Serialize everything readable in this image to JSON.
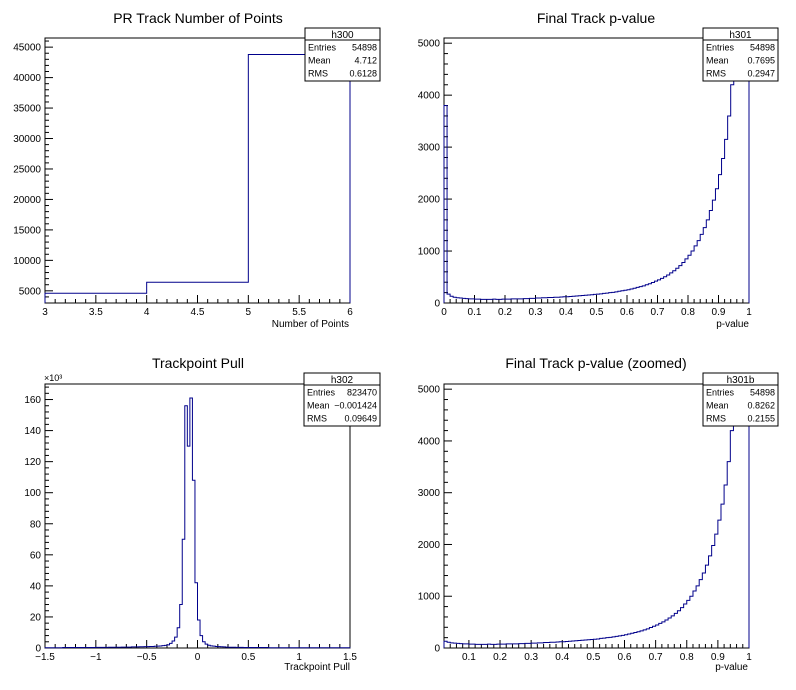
{
  "chart_data": [
    {
      "id": "h300",
      "type": "histogram",
      "title": "PR Track Number of Points",
      "xlabel": "Number of Points",
      "ylabel": "",
      "xlim": [
        3,
        6
      ],
      "ylim": [
        3000,
        46500
      ],
      "xticks": [
        3,
        3.5,
        4,
        4.5,
        5,
        5.5,
        6
      ],
      "xtick_labels": [
        "3",
        "3.5",
        "4",
        "4.5",
        "5",
        "5.5",
        "6"
      ],
      "yticks": [
        5000,
        10000,
        15000,
        20000,
        25000,
        30000,
        35000,
        40000,
        45000
      ],
      "ytick_labels": [
        "5000",
        "10000",
        "15000",
        "20000",
        "25000",
        "30000",
        "35000",
        "40000",
        "45000"
      ],
      "exponent_label": "",
      "bin_edges": [
        3,
        4,
        5,
        6
      ],
      "values": [
        4600,
        6400,
        43800
      ],
      "stats": {
        "name": "h300",
        "rows": [
          [
            "Entries",
            "54898"
          ],
          [
            "Mean",
            "4.712"
          ],
          [
            "RMS",
            "0.6128"
          ]
        ]
      }
    },
    {
      "id": "h301",
      "type": "histogram",
      "title": "Final Track p-value",
      "xlabel": "p-value",
      "ylabel": "",
      "xlim": [
        0,
        1
      ],
      "ylim": [
        0,
        5100
      ],
      "xticks": [
        0,
        0.1,
        0.2,
        0.3,
        0.4,
        0.5,
        0.6,
        0.7,
        0.8,
        0.9,
        1
      ],
      "xtick_labels": [
        "0",
        "0.1",
        "0.2",
        "0.3",
        "0.4",
        "0.5",
        "0.6",
        "0.7",
        "0.8",
        "0.9",
        "1"
      ],
      "yticks": [
        0,
        1000,
        2000,
        3000,
        4000,
        5000
      ],
      "ytick_labels": [
        "0",
        "1000",
        "2000",
        "3000",
        "4000",
        "5000"
      ],
      "exponent_label": "",
      "bin_start": 0,
      "bin_width": 0.01,
      "values": [
        3800,
        170,
        130,
        110,
        100,
        95,
        90,
        85,
        80,
        80,
        75,
        75,
        70,
        70,
        70,
        70,
        75,
        70,
        70,
        75,
        75,
        75,
        80,
        80,
        80,
        80,
        85,
        85,
        90,
        90,
        95,
        95,
        100,
        100,
        105,
        105,
        110,
        110,
        115,
        120,
        120,
        125,
        130,
        135,
        140,
        145,
        150,
        155,
        160,
        165,
        170,
        175,
        185,
        190,
        200,
        205,
        215,
        225,
        235,
        245,
        255,
        270,
        285,
        300,
        315,
        330,
        350,
        370,
        395,
        420,
        445,
        475,
        505,
        540,
        580,
        620,
        670,
        720,
        780,
        850,
        920,
        1000,
        1100,
        1200,
        1320,
        1450,
        1600,
        1780,
        1980,
        2200,
        2470,
        2780,
        3150,
        3600,
        4200,
        4350,
        4600,
        4850,
        4500,
        4300
      ]
    },
    {
      "id": "h302",
      "type": "histogram",
      "title": "Trackpoint Pull",
      "xlabel": "Trackpoint Pull",
      "ylabel": "",
      "xlim": [
        -1.5,
        1.5
      ],
      "ylim": [
        0,
        170
      ],
      "xticks": [
        -1.5,
        -1,
        -0.5,
        0,
        0.5,
        1,
        1.5
      ],
      "xtick_labels": [
        "−1.5",
        "−1",
        "−0.5",
        "0",
        "0.5",
        "1",
        "1.5"
      ],
      "yticks": [
        0,
        20,
        40,
        60,
        80,
        100,
        120,
        140,
        160
      ],
      "ytick_labels": [
        "0",
        "20",
        "40",
        "60",
        "80",
        "100",
        "120",
        "140",
        "160"
      ],
      "exponent_label": "×10³",
      "bin_start": -1.5,
      "bin_width": 0.025,
      "values": [
        0.2,
        0.2,
        0.2,
        0.2,
        0.2,
        0.2,
        0.2,
        0.3,
        0.3,
        0.3,
        0.3,
        0.3,
        0.3,
        0.3,
        0.3,
        0.3,
        0.3,
        0.3,
        0.3,
        0.3,
        0.4,
        0.4,
        0.4,
        0.4,
        0.4,
        0.5,
        0.5,
        0.5,
        0.5,
        0.5,
        0.6,
        0.6,
        0.6,
        0.6,
        0.7,
        0.7,
        0.7,
        0.8,
        0.8,
        0.9,
        0.9,
        1.0,
        1.0,
        1.1,
        1.2,
        1.3,
        1.5,
        1.7,
        2.0,
        3.0,
        4.5,
        7,
        13,
        28,
        70,
        156,
        130,
        161,
        108,
        42,
        18,
        8,
        4,
        2.5,
        1.8,
        1.4,
        1.2,
        1.0,
        0.9,
        0.8,
        0.7,
        0.6,
        0.5,
        0.5,
        0.5,
        0.4,
        0.4,
        0.4,
        0.3,
        0.3,
        0.3,
        0.3,
        0.3,
        0.3,
        0.3,
        0.3,
        0.3,
        0.3,
        0.2,
        0.2,
        0.2,
        0.2,
        0.2,
        0.2,
        0.2,
        0.2,
        0.2,
        0.2,
        0.2,
        0.2,
        0.2,
        0.2,
        0.2,
        0.2,
        0.2,
        0.2,
        0.2,
        0.2,
        0.2,
        0.2,
        0.2,
        0.2,
        0.2,
        0.2,
        0.2,
        0.2,
        0.2,
        0.2,
        0.2,
        0.2
      ],
      "stats": {
        "name": "h302",
        "rows": [
          [
            "Entries",
            "823470"
          ],
          [
            "Mean",
            "−0.001424"
          ],
          [
            "RMS",
            "0.09649"
          ]
        ]
      }
    },
    {
      "id": "h301b",
      "type": "histogram",
      "title": "Final Track p-value (zoomed)",
      "xlabel": "p-value",
      "ylabel": "",
      "xlim": [
        0.02,
        1
      ],
      "ylim": [
        0,
        5100
      ],
      "xticks": [
        0.1,
        0.2,
        0.3,
        0.4,
        0.5,
        0.6,
        0.7,
        0.8,
        0.9,
        1
      ],
      "xtick_labels": [
        "0.1",
        "0.2",
        "0.3",
        "0.4",
        "0.5",
        "0.6",
        "0.7",
        "0.8",
        "0.9",
        "1"
      ],
      "yticks": [
        0,
        1000,
        2000,
        3000,
        4000,
        5000
      ],
      "ytick_labels": [
        "0",
        "1000",
        "2000",
        "3000",
        "4000",
        "5000"
      ],
      "exponent_label": "",
      "bin_start": 0.02,
      "bin_width": 0.01,
      "values": [
        130,
        110,
        100,
        95,
        90,
        85,
        80,
        80,
        75,
        75,
        70,
        70,
        70,
        70,
        75,
        70,
        70,
        75,
        75,
        75,
        80,
        80,
        80,
        80,
        85,
        85,
        90,
        90,
        95,
        95,
        100,
        100,
        105,
        105,
        110,
        110,
        115,
        120,
        120,
        125,
        130,
        135,
        140,
        145,
        150,
        155,
        160,
        165,
        170,
        175,
        185,
        190,
        200,
        205,
        215,
        225,
        235,
        245,
        255,
        270,
        285,
        300,
        315,
        330,
        350,
        370,
        395,
        420,
        445,
        475,
        505,
        540,
        580,
        620,
        670,
        720,
        780,
        850,
        920,
        1000,
        1100,
        1200,
        1320,
        1450,
        1600,
        1780,
        1980,
        2200,
        2470,
        2780,
        3150,
        3600,
        4200,
        4350,
        4600,
        4850,
        4500,
        4300
      ],
      "stats": {
        "name": "h301b",
        "rows": [
          [
            "Entries",
            "54898"
          ],
          [
            "Mean",
            "0.8262"
          ],
          [
            "RMS",
            "0.2155"
          ]
        ]
      }
    }
  ],
  "stats_h301": {
    "name": "h301",
    "rows": [
      [
        "Entries",
        "54898"
      ],
      [
        "Mean",
        "0.7695"
      ],
      [
        "RMS",
        "0.2947"
      ]
    ]
  },
  "colors": {
    "line": "#00008b",
    "frame": "#000000",
    "background": "#ffffff"
  }
}
